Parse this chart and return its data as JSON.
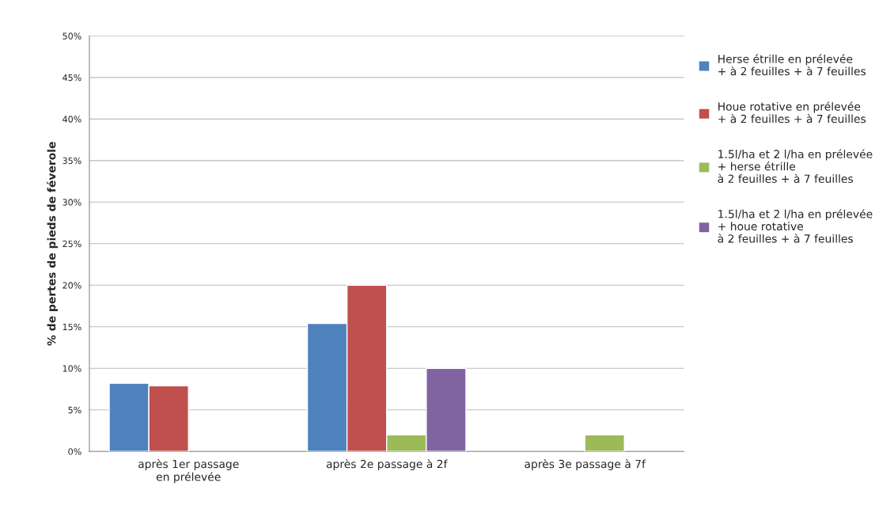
{
  "chart_data": {
    "type": "bar",
    "ylabel": "% de pertes de pieds de féverole",
    "categories": [
      "après 1er passage\nen prélevée",
      "après 2e passage à 2f",
      "après 3e passage à 7f"
    ],
    "series": [
      {
        "name": "Herse étrille en prélevée\n+ à 2 feuilles + à 7 feuilles",
        "color": "#4f81bd",
        "values": [
          8.2,
          15.4,
          null
        ]
      },
      {
        "name": "Houe rotative en prélevée\n+ à 2 feuilles + à 7 feuilles",
        "color": "#c0504d",
        "values": [
          7.9,
          20,
          null
        ]
      },
      {
        "name": "1.5l/ha et 2 l/ha en prélevée\n+ herse étrille\nà 2 feuilles + à 7 feuilles",
        "color": "#9bbb59",
        "values": [
          null,
          2,
          2
        ]
      },
      {
        "name": "1.5l/ha et 2 l/ha en prélevée\n+ houe rotative\nà 2 feuilles + à 7 feuilles",
        "color": "#8064a2",
        "values": [
          null,
          10,
          null
        ]
      }
    ],
    "ylim": [
      0,
      50
    ],
    "yticks": [
      {
        "value": 0,
        "label": "0%"
      },
      {
        "value": 5,
        "label": "5%"
      },
      {
        "value": 10,
        "label": "10%"
      },
      {
        "value": 15,
        "label": "15%"
      },
      {
        "value": 20,
        "label": "20%"
      },
      {
        "value": 25,
        "label": "25%"
      },
      {
        "value": 30,
        "label": "30%"
      },
      {
        "value": 35,
        "label": "35%"
      },
      {
        "value": 40,
        "label": "40%"
      },
      {
        "value": 45,
        "label": "45%"
      },
      {
        "value": 50,
        "label": "50%"
      }
    ],
    "grid": "y",
    "legend": "right"
  }
}
